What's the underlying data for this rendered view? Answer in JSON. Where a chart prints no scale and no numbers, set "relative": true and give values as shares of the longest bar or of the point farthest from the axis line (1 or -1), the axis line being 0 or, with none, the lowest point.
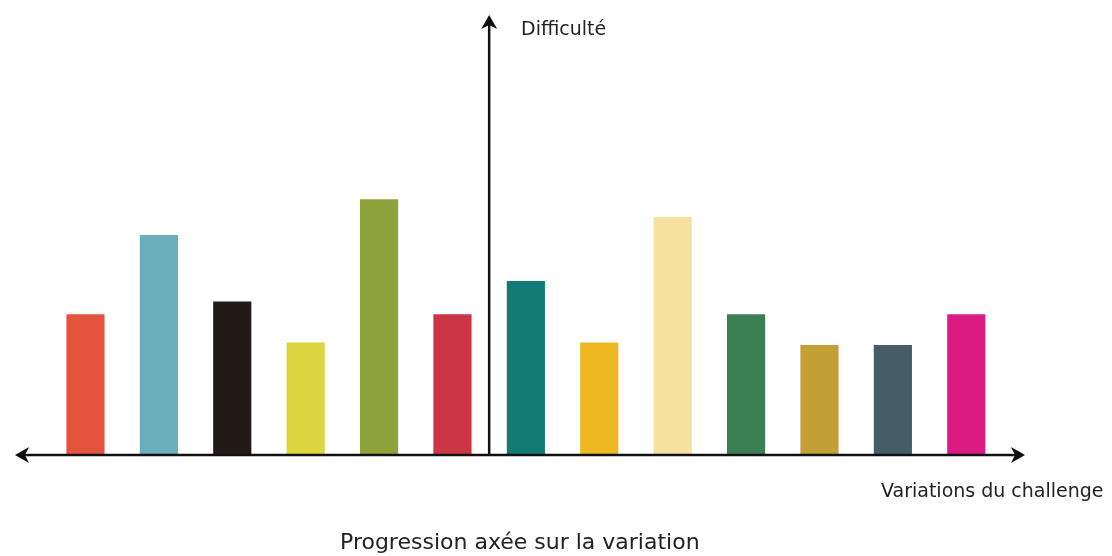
{
  "chart_data": {
    "type": "bar",
    "relative": true,
    "title": "Progression axée sur la variation",
    "xlabel": "Variations du challenge",
    "annotations": [
      "Difficulté"
    ],
    "categories": [
      null,
      null,
      null,
      null,
      null,
      null,
      null,
      null,
      null,
      null,
      null,
      null,
      null
    ],
    "values": [
      0.55,
      0.86,
      0.6,
      0.44,
      1,
      0.55,
      0.68,
      0.44,
      0.93,
      0.55,
      0.43,
      0.43,
      0.55
    ],
    "colors": [
      "#e5533f",
      "#6aadbb",
      "#221a16",
      "#dcd63e",
      "#8fa33c",
      "#cc3546",
      "#127a73",
      "#edb822",
      "#f5e1a0",
      "#3b8055",
      "#c39f35",
      "#455e66",
      "#dc1a84"
    ]
  }
}
